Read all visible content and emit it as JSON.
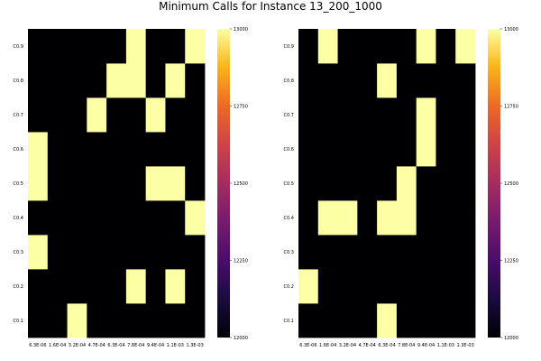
{
  "chart_data": [
    {
      "type": "heatmap",
      "x": [
        "6.3E-06",
        "1.6E-04",
        "3.2E-04",
        "4.7E-04",
        "6.3E-04",
        "7.8E-04",
        "9.4E-04",
        "1.1E-03",
        "1.3E-03"
      ],
      "y": [
        "C0.1",
        "C0.2",
        "C0.3",
        "C0.4",
        "C0.5",
        "C0.6",
        "C0.7",
        "C0.8",
        "C0.9"
      ],
      "z": [
        [
          12000,
          12000,
          13000,
          12000,
          12000,
          12000,
          12000,
          12000,
          12000
        ],
        [
          12000,
          12000,
          12000,
          12000,
          12000,
          13000,
          12000,
          13000,
          12000
        ],
        [
          13000,
          12000,
          12000,
          12000,
          12000,
          12000,
          12000,
          12000,
          12000
        ],
        [
          12000,
          12000,
          12000,
          12000,
          12000,
          12000,
          12000,
          12000,
          13000
        ],
        [
          13000,
          12000,
          12000,
          12000,
          12000,
          12000,
          13000,
          13000,
          12000
        ],
        [
          13000,
          12000,
          12000,
          12000,
          12000,
          12000,
          12000,
          12000,
          12000
        ],
        [
          12000,
          12000,
          12000,
          13000,
          12000,
          12000,
          13000,
          12000,
          12000
        ],
        [
          12000,
          12000,
          12000,
          12000,
          13000,
          13000,
          12000,
          13000,
          12000
        ],
        [
          12000,
          12000,
          12000,
          12000,
          12000,
          13000,
          12000,
          12000,
          13000
        ]
      ],
      "zlim": [
        12000,
        13000
      ],
      "colorbar_ticks": [
        "12000",
        "12250",
        "12500",
        "12750",
        "13000"
      ],
      "colormap": "inferno",
      "grid": false
    },
    {
      "type": "heatmap",
      "x": [
        "6.3E-06",
        "1.6E-04",
        "3.2E-04",
        "4.7E-04",
        "6.3E-04",
        "7.8E-04",
        "9.4E-04",
        "1.1E-03",
        "1.3E-03"
      ],
      "y": [
        "C0.1",
        "C0.2",
        "C0.3",
        "C0.4",
        "C0.5",
        "C0.6",
        "C0.7",
        "C0.8",
        "C0.9"
      ],
      "z": [
        [
          12000,
          12000,
          12000,
          12000,
          13000,
          12000,
          12000,
          12000,
          12000
        ],
        [
          13000,
          12000,
          12000,
          12000,
          12000,
          12000,
          12000,
          12000,
          12000
        ],
        [
          12000,
          12000,
          12000,
          12000,
          12000,
          12000,
          12000,
          12000,
          12000
        ],
        [
          12000,
          13000,
          13000,
          12000,
          13000,
          13000,
          12000,
          12000,
          12000
        ],
        [
          12000,
          12000,
          12000,
          12000,
          12000,
          13000,
          12000,
          12000,
          12000
        ],
        [
          12000,
          12000,
          12000,
          12000,
          12000,
          12000,
          13000,
          12000,
          12000
        ],
        [
          12000,
          12000,
          12000,
          12000,
          12000,
          12000,
          13000,
          12000,
          12000
        ],
        [
          12000,
          12000,
          12000,
          12000,
          13000,
          12000,
          12000,
          12000,
          12000
        ],
        [
          12000,
          13000,
          12000,
          12000,
          12000,
          12000,
          13000,
          12000,
          13000
        ]
      ],
      "zlim": [
        12000,
        13000
      ],
      "colorbar_ticks": [
        "12000",
        "12250",
        "12500",
        "12750",
        "13000"
      ],
      "colormap": "inferno",
      "grid": false
    }
  ],
  "title": "Minimum Calls for Instance 13_200_1000",
  "colors": {
    "low": "#000004",
    "high": "#fcffa4",
    "background": "#ffffff"
  }
}
